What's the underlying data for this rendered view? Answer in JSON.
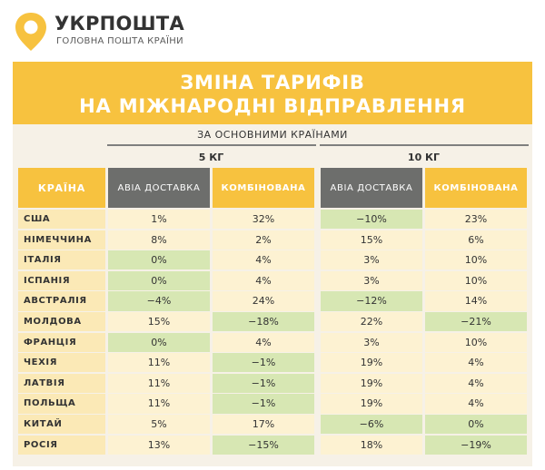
{
  "brand": {
    "name": "УКРПОШТА",
    "tagline": "ГОЛОВНА ПОШТА КРАЇНИ",
    "logo_icon": "ukrposhta-logo-icon",
    "accent_color": "#f7c23f"
  },
  "banner": {
    "line1": "ЗМІНА ТАРИФІВ",
    "line2": "НА МІЖНАРОДНІ ВІДПРАВЛЕННЯ"
  },
  "subtitle": "ЗА ОСНОВНИМИ КРАЇНАМИ",
  "table": {
    "country_header": "КРАЇНА",
    "groups": [
      {
        "weight": "5 КГ",
        "columns": [
          "АВІА ДОСТАВКА",
          "КОМБІНОВАНА"
        ]
      },
      {
        "weight": "10 КГ",
        "columns": [
          "АВІА ДОСТАВКА",
          "КОМБІНОВАНА"
        ]
      }
    ],
    "rows": [
      {
        "country": "США",
        "values": [
          "1%",
          "32%",
          "−10%",
          "23%"
        ]
      },
      {
        "country": "НІМЕЧЧИНА",
        "values": [
          "8%",
          "2%",
          "15%",
          "6%"
        ]
      },
      {
        "country": "ІТАЛІЯ",
        "values": [
          "0%",
          "4%",
          "3%",
          "10%"
        ]
      },
      {
        "country": "ІСПАНІЯ",
        "values": [
          "0%",
          "4%",
          "3%",
          "10%"
        ]
      },
      {
        "country": "АВСТРАЛІЯ",
        "values": [
          "−4%",
          "24%",
          "−12%",
          "14%"
        ]
      },
      {
        "country": "МОЛДОВА",
        "values": [
          "15%",
          "−18%",
          "22%",
          "−21%"
        ]
      },
      {
        "country": "ФРАНЦІЯ",
        "values": [
          "0%",
          "4%",
          "3%",
          "10%"
        ]
      },
      {
        "country": "ЧЕХІЯ",
        "values": [
          "11%",
          "−1%",
          "19%",
          "4%"
        ]
      },
      {
        "country": "ЛАТВІЯ",
        "values": [
          "11%",
          "−1%",
          "19%",
          "4%"
        ]
      },
      {
        "country": "ПОЛЬЩА",
        "values": [
          "11%",
          "−1%",
          "19%",
          "4%"
        ]
      },
      {
        "country": "КИТАЙ",
        "values": [
          "5%",
          "17%",
          "−6%",
          "0%"
        ]
      },
      {
        "country": "РОСІЯ",
        "values": [
          "13%",
          "−15%",
          "18%",
          "−19%"
        ]
      }
    ],
    "colors": {
      "header_yellow": "#f7c23f",
      "header_gray": "#6d6e6c",
      "country_bg": "#fbe9b6",
      "increase_bg": "#fdf2d2",
      "decrease_bg": "#d7e7b3",
      "zero_bg": "#d7e7b3"
    }
  }
}
